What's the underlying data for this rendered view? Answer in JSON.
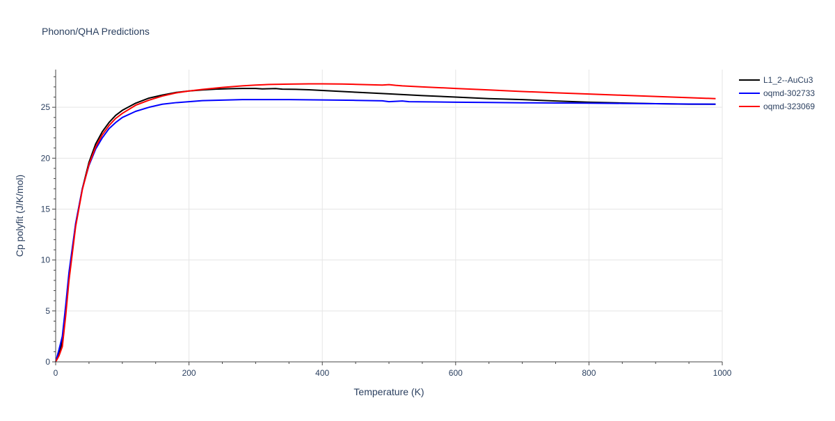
{
  "chart_data": {
    "type": "line",
    "title": "Phonon/QHA Predictions",
    "xlabel": "Temperature (K)",
    "ylabel": "Cp polyfit (J/K/mol)",
    "xlim": [
      0,
      1000
    ],
    "ylim": [
      0,
      28.7
    ],
    "xticks": [
      0,
      200,
      400,
      600,
      800,
      1000
    ],
    "yticks": [
      0,
      5,
      10,
      15,
      20,
      25
    ],
    "grid": true,
    "legend_position": "top-right",
    "series": [
      {
        "name": "L1_2--AuCu3",
        "color": "#000000",
        "x": [
          0,
          5,
          10,
          15,
          20,
          30,
          40,
          50,
          60,
          70,
          80,
          90,
          100,
          120,
          140,
          160,
          180,
          200,
          220,
          240,
          260,
          280,
          300,
          310,
          320,
          330,
          340,
          360,
          380,
          400,
          450,
          500,
          550,
          600,
          650,
          700,
          750,
          800,
          850,
          900,
          950,
          990
        ],
        "y": [
          0,
          0.8,
          2.0,
          5.0,
          8.5,
          13.5,
          17.0,
          19.6,
          21.4,
          22.6,
          23.5,
          24.2,
          24.7,
          25.4,
          25.9,
          26.2,
          26.45,
          26.6,
          26.7,
          26.78,
          26.82,
          26.85,
          26.85,
          26.8,
          26.82,
          26.84,
          26.78,
          26.76,
          26.72,
          26.65,
          26.48,
          26.32,
          26.15,
          26.0,
          25.85,
          25.75,
          25.62,
          25.5,
          25.42,
          25.35,
          25.3,
          25.3
        ]
      },
      {
        "name": "oqmd-302733",
        "color": "#0000ff",
        "x": [
          0,
          5,
          10,
          15,
          20,
          30,
          40,
          50,
          60,
          70,
          80,
          90,
          100,
          120,
          140,
          160,
          180,
          200,
          220,
          250,
          280,
          300,
          350,
          400,
          450,
          490,
          500,
          520,
          530,
          570,
          600,
          650,
          700,
          750,
          800,
          850,
          900,
          950,
          990
        ],
        "y": [
          0,
          1.2,
          2.5,
          5.5,
          8.8,
          13.6,
          17.0,
          19.3,
          20.9,
          22.0,
          22.9,
          23.5,
          24.0,
          24.6,
          25.0,
          25.3,
          25.45,
          25.55,
          25.65,
          25.7,
          25.75,
          25.75,
          25.75,
          25.72,
          25.68,
          25.63,
          25.55,
          25.62,
          25.55,
          25.52,
          25.5,
          25.47,
          25.44,
          25.42,
          25.4,
          25.38,
          25.35,
          25.32,
          25.3
        ]
      },
      {
        "name": "oqmd-323069",
        "color": "#ff0000",
        "x": [
          0,
          5,
          10,
          15,
          20,
          30,
          40,
          50,
          60,
          70,
          80,
          90,
          100,
          120,
          140,
          160,
          180,
          200,
          220,
          250,
          280,
          300,
          320,
          350,
          380,
          400,
          430,
          450,
          490,
          500,
          510,
          520,
          550,
          600,
          650,
          700,
          750,
          800,
          850,
          900,
          950,
          990
        ],
        "y": [
          0,
          0.6,
          1.5,
          4.5,
          8.0,
          13.3,
          16.9,
          19.4,
          21.1,
          22.3,
          23.2,
          23.9,
          24.4,
          25.2,
          25.7,
          26.1,
          26.4,
          26.6,
          26.75,
          26.95,
          27.1,
          27.18,
          27.24,
          27.27,
          27.3,
          27.3,
          27.28,
          27.25,
          27.18,
          27.22,
          27.15,
          27.1,
          27.0,
          26.85,
          26.7,
          26.55,
          26.42,
          26.3,
          26.18,
          26.06,
          25.94,
          25.85
        ]
      }
    ]
  }
}
